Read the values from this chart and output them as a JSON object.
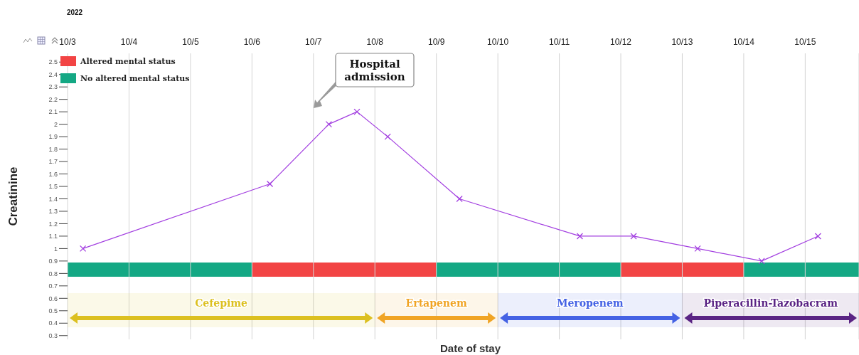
{
  "chart_data": {
    "type": "line",
    "xlabel": "Date of stay",
    "ylabel": "Creatinine",
    "x": [
      "2022-10-03T06:00",
      "2022-10-06T07:00",
      "2022-10-07T06:00",
      "2022-10-07T17:00",
      "2022-10-08T05:00",
      "2022-10-09T09:00",
      "2022-10-11T08:00",
      "2022-10-12T05:00",
      "2022-10-13T06:00",
      "2022-10-14T07:00",
      "2022-10-15T05:00"
    ],
    "series": [
      {
        "color": "#a23ee0",
        "values": [
          1.0,
          1.52,
          2.0,
          2.1,
          1.9,
          1.4,
          1.1,
          1.1,
          1.0,
          0.9,
          1.1
        ]
      }
    ],
    "marker": "cross",
    "line_style": "solid",
    "grid": "x",
    "legend": "top left",
    "xlim": [
      "2022-10-03",
      "2022-10-15T21:00"
    ],
    "xticks": [
      {
        "value": "2022-10-03",
        "label": "10/3"
      },
      {
        "value": "2022-10-04",
        "label": "10/4"
      },
      {
        "value": "2022-10-05",
        "label": "10/5"
      },
      {
        "value": "2022-10-06",
        "label": "10/6"
      },
      {
        "value": "2022-10-07",
        "label": "10/7"
      },
      {
        "value": "2022-10-08",
        "label": "10/8"
      },
      {
        "value": "2022-10-09",
        "label": "10/9"
      },
      {
        "value": "2022-10-10",
        "label": "10/10"
      },
      {
        "value": "2022-10-11",
        "label": "10/11"
      },
      {
        "value": "2022-10-12",
        "label": "10/12"
      },
      {
        "value": "2022-10-13",
        "label": "10/13"
      },
      {
        "value": "2022-10-14",
        "label": "10/14"
      },
      {
        "value": "2022-10-15",
        "label": "10/15"
      }
    ],
    "ylim": [
      0.27,
      2.57
    ],
    "yticks": [
      0.3,
      0.4,
      0.5,
      0.6,
      0.7,
      0.8,
      0.9,
      1,
      1.1,
      1.2,
      1.3,
      1.4,
      1.5,
      1.6,
      1.7,
      1.8,
      1.9,
      2,
      2.1,
      2.2,
      2.3,
      2.4,
      2.5
    ],
    "bands": [
      {
        "axis": "x",
        "from": "2022-10-06",
        "to": "2022-10-09",
        "label": "Altered mental status",
        "color": "#f24444"
      },
      {
        "axis": "x",
        "from": "2022-10-12",
        "to": "2022-10-14",
        "color": "#f24444"
      },
      {
        "axis": "x",
        "from": "2022-10-03",
        "to": "2022-10-06",
        "label": "No altered mental status",
        "color": "#14a884"
      },
      {
        "axis": "x",
        "from": "2022-10-09",
        "to": "2022-10-12",
        "color": "#14a884"
      },
      {
        "axis": "x",
        "from": "2022-10-14",
        "to": "2022-10-15T21:00",
        "color": "#14a884"
      },
      {
        "axis": "x",
        "from": "2022-10-03",
        "to": "2022-10-08",
        "label": "Cefepime",
        "color": "#dcc020"
      },
      {
        "axis": "x",
        "from": "2022-10-08",
        "to": "2022-10-10",
        "label": "Ertapenem",
        "color": "#f0a424"
      },
      {
        "axis": "x",
        "from": "2022-10-10",
        "to": "2022-10-13",
        "label": "Meropenem",
        "color": "#4462e4"
      },
      {
        "axis": "x",
        "from": "2022-10-13",
        "to": "2022-10-15T21:00",
        "label": "Piperacillin-Tazobacram",
        "color": "#5a2484"
      }
    ],
    "annotations": [
      "2022",
      "Hospital admission"
    ]
  }
}
